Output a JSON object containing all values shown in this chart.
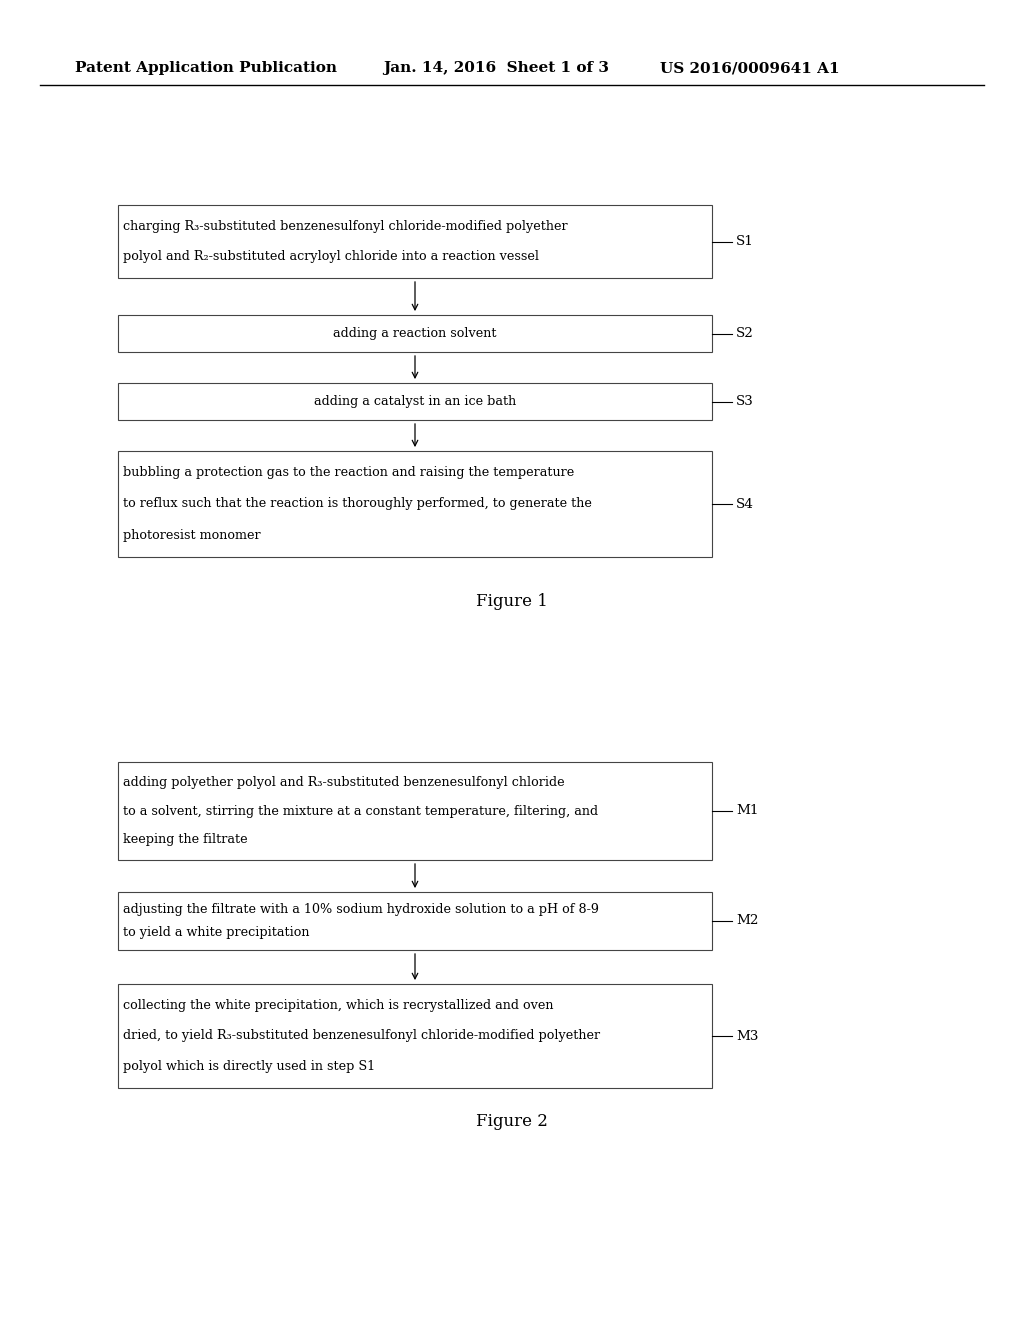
{
  "background_color": "#ffffff",
  "header_left": "Patent Application Publication",
  "header_center": "Jan. 14, 2016  Sheet 1 of 3",
  "header_right": "US 2016/0009641 A1",
  "fig1_title": "Figure 1",
  "fig2_title": "Figure 2",
  "fig1_boxes": [
    {
      "label": "S1",
      "lines": [
        "charging R₃-substituted benzenesulfonyl chloride-modified polyether",
        "polyol and R₂-substituted acryloyl chloride into a reaction vessel"
      ]
    },
    {
      "label": "S2",
      "lines": [
        "adding a reaction solvent"
      ]
    },
    {
      "label": "S3",
      "lines": [
        "adding a catalyst in an ice bath"
      ]
    },
    {
      "label": "S4",
      "lines": [
        "bubbling a protection gas to the reaction and raising the temperature",
        "to reflux such that the reaction is thoroughly performed, to generate the",
        "photoresist monomer"
      ]
    }
  ],
  "fig2_boxes": [
    {
      "label": "M1",
      "lines": [
        "adding polyether polyol and R₃-substituted benzenesulfonyl chloride",
        "to a solvent, stirring the mixture at a constant temperature, filtering, and",
        "keeping the filtrate"
      ]
    },
    {
      "label": "M2",
      "lines": [
        "adjusting the filtrate with a 10% sodium hydroxide solution to a pH of 8-9",
        "to yield a white precipitation"
      ]
    },
    {
      "label": "M3",
      "lines": [
        "collecting the white precipitation, which is recrystallized and oven",
        "dried, to yield R₃-substituted benzenesulfonyl chloride-modified polyether",
        "polyol which is directly used in step S1"
      ]
    }
  ]
}
